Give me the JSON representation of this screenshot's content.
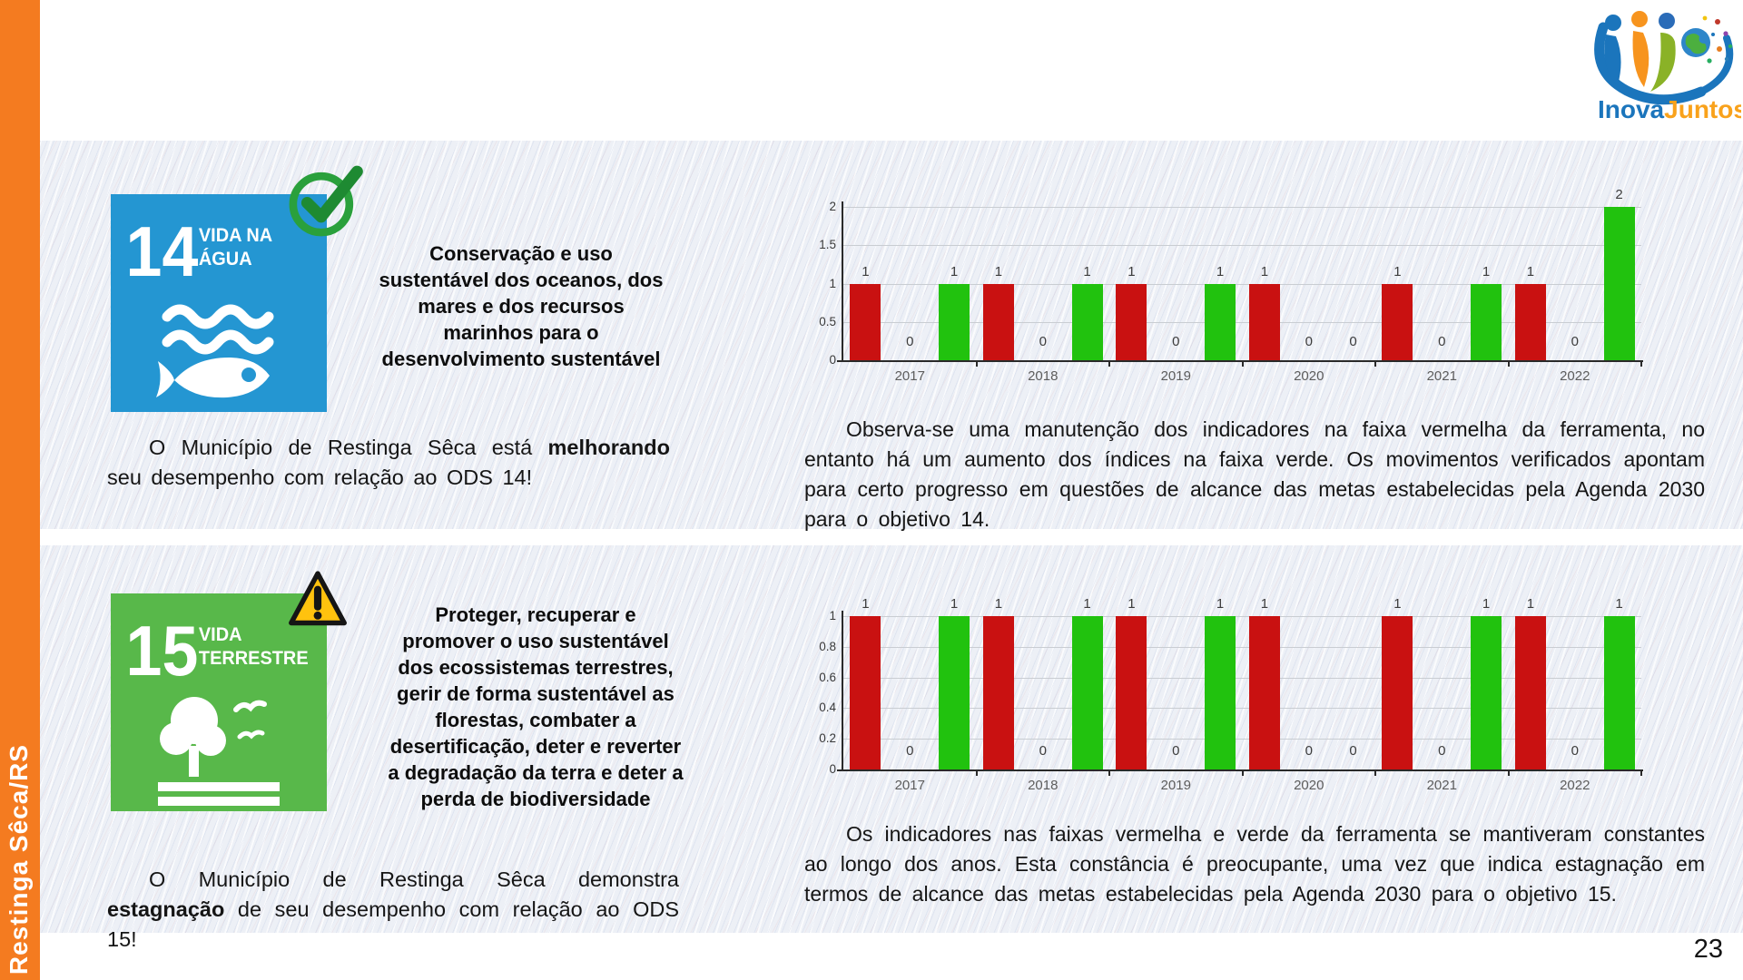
{
  "page": {
    "sidebar_label": "Restinga Sêca/RS",
    "page_number": "23",
    "logo_part1": "Inova",
    "logo_part2": "Juntos"
  },
  "sections": [
    {
      "goal_number": "14",
      "goal_label_line1": "VIDA NA",
      "goal_label_line2": "ÁGUA",
      "goal_color": "#2496D2",
      "status_marker": "check",
      "description": "Conservação e uso\nsustentável dos oceanos, dos\nmares e dos recursos\nmarinhos para o\ndesenvolvimento sustentável",
      "performance": {
        "prefix": "O Município de Restinga Sêca está ",
        "highlight": "melhorando",
        "suffix": " seu desempenho com relação ao ODS 14!"
      },
      "analysis": "Observa-se uma manutenção dos indicadores na faixa vermelha da ferramenta, no entanto há um aumento dos índices na faixa verde. Os movimentos verificados apontam para certo progresso em questões de alcance das metas estabelecidas pela Agenda 2030 para o objetivo 14."
    },
    {
      "goal_number": "15",
      "goal_label_line1": "VIDA",
      "goal_label_line2": "TERRESTRE",
      "goal_color": "#58B84A",
      "status_marker": "warning",
      "description": "Proteger, recuperar e\npromover o uso sustentável\ndos ecossistemas terrestres,\ngerir de forma sustentável as\nflorestas, combater a\ndesertificação, deter e reverter\na degradação da terra e deter a\nperda de biodiversidade",
      "performance": {
        "prefix": "O Município de Restinga Sêca demonstra ",
        "highlight": "estagnação",
        "suffix": " de seu desempenho com relação ao ODS 15!"
      },
      "analysis": "Os indicadores nas faixas vermelha e verde da ferramenta se mantiveram constantes ao longo dos anos. Esta constância é preocupante, uma vez que indica estagnação em termos de alcance das metas estabelecidas pela Agenda 2030 para o objetivo 15."
    }
  ],
  "chart_data": [
    {
      "type": "bar",
      "title": "",
      "xlabel": "",
      "ylabel": "",
      "categories": [
        "2017",
        "2018",
        "2019",
        "2020",
        "2021",
        "2022"
      ],
      "series": [
        {
          "name": "faixa vermelha",
          "color": "#C91111",
          "values": [
            1,
            1,
            1,
            1,
            1,
            1
          ]
        },
        {
          "name": "faixa amarela",
          "color": null,
          "values": [
            0,
            0,
            0,
            0,
            0,
            0
          ]
        },
        {
          "name": "faixa verde",
          "color": "#21C20E",
          "values": [
            1,
            1,
            1,
            0,
            1,
            2
          ]
        }
      ],
      "ylim": [
        0,
        2
      ],
      "yticks": [
        0,
        0.5,
        1,
        1.5,
        2
      ],
      "grid": true,
      "legend_position": "none"
    },
    {
      "type": "bar",
      "title": "",
      "xlabel": "",
      "ylabel": "",
      "categories": [
        "2017",
        "2018",
        "2019",
        "2020",
        "2021",
        "2022"
      ],
      "series": [
        {
          "name": "faixa vermelha",
          "color": "#C91111",
          "values": [
            1,
            1,
            1,
            1,
            1,
            1
          ]
        },
        {
          "name": "faixa amarela",
          "color": null,
          "values": [
            0,
            0,
            0,
            0,
            0,
            0
          ]
        },
        {
          "name": "faixa verde",
          "color": "#21C20E",
          "values": [
            1,
            1,
            1,
            0,
            1,
            1
          ]
        }
      ],
      "ylim": [
        0,
        1
      ],
      "yticks": [
        0,
        0.2,
        0.4,
        0.6,
        0.8,
        1
      ],
      "grid": true,
      "legend_position": "none"
    }
  ]
}
